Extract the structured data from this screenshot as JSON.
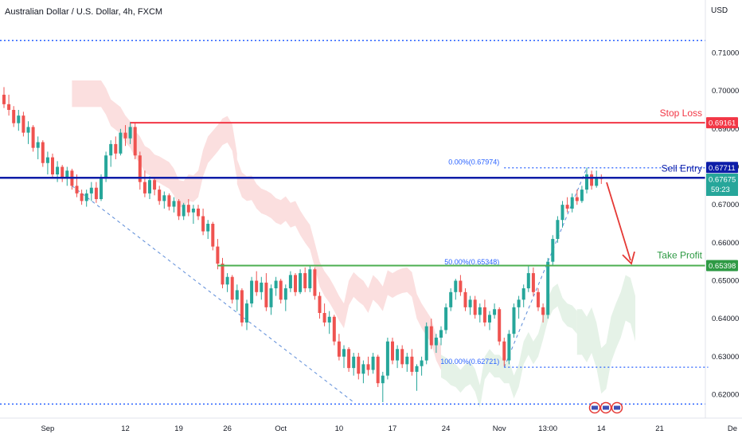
{
  "header": {
    "title": "Australian Dollar / U.S. Dollar, 4h, FXCM",
    "currency": "USD"
  },
  "colors": {
    "up": "#26a69a",
    "down": "#ef5350",
    "stop": "#f23645",
    "entry": "#0d1da8",
    "take": "#4caf50",
    "grid_dotted": "#2962ff",
    "cloud_red": "#fbdcdc",
    "cloud_green": "#e2f1e4",
    "fib_dashed": "#5b8bd8",
    "arrow": "#e53935"
  },
  "chart_data": {
    "type": "candlestick",
    "ylim": [
      0.615,
      0.7185
    ],
    "y_ticks": [
      "0.71000",
      "0.70000",
      "0.69000",
      "0.68000",
      "0.67000",
      "0.66000",
      "0.65000",
      "0.64000",
      "0.63000",
      "0.62000"
    ],
    "x_ticks": [
      {
        "label": "Sep",
        "i": 9
      },
      {
        "label": "12",
        "i": 25
      },
      {
        "label": "19",
        "i": 36
      },
      {
        "label": "26",
        "i": 46
      },
      {
        "label": "Oct",
        "i": 57
      },
      {
        "label": "10",
        "i": 69
      },
      {
        "label": "17",
        "i": 80
      },
      {
        "label": "24",
        "i": 91
      },
      {
        "label": "Nov",
        "i": 102
      },
      {
        "label": "13:00",
        "i": 112
      },
      {
        "label": "14",
        "i": 123
      },
      {
        "label": "21",
        "i": 135
      },
      {
        "label": "De",
        "i": 150
      }
    ],
    "candles": [
      [
        0.699,
        0.701,
        0.6955,
        0.6965
      ],
      [
        0.6965,
        0.699,
        0.6935,
        0.695
      ],
      [
        0.695,
        0.696,
        0.6905,
        0.6915
      ],
      [
        0.6915,
        0.695,
        0.6895,
        0.6935
      ],
      [
        0.6935,
        0.6945,
        0.688,
        0.689
      ],
      [
        0.689,
        0.692,
        0.686,
        0.6905
      ],
      [
        0.6905,
        0.691,
        0.684,
        0.685
      ],
      [
        0.685,
        0.688,
        0.682,
        0.6865
      ],
      [
        0.6865,
        0.687,
        0.68,
        0.681
      ],
      [
        0.681,
        0.684,
        0.678,
        0.6825
      ],
      [
        0.6825,
        0.6835,
        0.677,
        0.678
      ],
      [
        0.678,
        0.6815,
        0.676,
        0.68
      ],
      [
        0.68,
        0.6805,
        0.676,
        0.677
      ],
      [
        0.677,
        0.68,
        0.675,
        0.679
      ],
      [
        0.679,
        0.6795,
        0.674,
        0.675
      ],
      [
        0.675,
        0.678,
        0.672,
        0.673
      ],
      [
        0.673,
        0.674,
        0.67,
        0.671
      ],
      [
        0.671,
        0.674,
        0.6695,
        0.673
      ],
      [
        0.673,
        0.676,
        0.671,
        0.6745
      ],
      [
        0.6745,
        0.676,
        0.6705,
        0.6715
      ],
      [
        0.6715,
        0.678,
        0.671,
        0.677
      ],
      [
        0.677,
        0.684,
        0.676,
        0.683
      ],
      [
        0.683,
        0.687,
        0.68,
        0.686
      ],
      [
        0.686,
        0.688,
        0.682,
        0.6835
      ],
      [
        0.6835,
        0.69,
        0.683,
        0.689
      ],
      [
        0.689,
        0.691,
        0.6855,
        0.6875
      ],
      [
        0.6875,
        0.6918,
        0.686,
        0.6905
      ],
      [
        0.6905,
        0.6915,
        0.682,
        0.683
      ],
      [
        0.683,
        0.684,
        0.674,
        0.676
      ],
      [
        0.676,
        0.679,
        0.672,
        0.673
      ],
      [
        0.673,
        0.6775,
        0.6715,
        0.6765
      ],
      [
        0.6765,
        0.677,
        0.6725,
        0.674
      ],
      [
        0.674,
        0.675,
        0.67,
        0.671
      ],
      [
        0.671,
        0.6735,
        0.669,
        0.6725
      ],
      [
        0.6725,
        0.673,
        0.6685,
        0.6695
      ],
      [
        0.6695,
        0.672,
        0.668,
        0.671
      ],
      [
        0.671,
        0.6715,
        0.666,
        0.667
      ],
      [
        0.667,
        0.6705,
        0.666,
        0.67
      ],
      [
        0.67,
        0.6715,
        0.667,
        0.668
      ],
      [
        0.668,
        0.67,
        0.665,
        0.669
      ],
      [
        0.669,
        0.67,
        0.666,
        0.667
      ],
      [
        0.667,
        0.669,
        0.662,
        0.663
      ],
      [
        0.663,
        0.666,
        0.661,
        0.665
      ],
      [
        0.665,
        0.6655,
        0.658,
        0.659
      ],
      [
        0.659,
        0.661,
        0.653,
        0.6545
      ],
      [
        0.6545,
        0.656,
        0.648,
        0.649
      ],
      [
        0.649,
        0.652,
        0.647,
        0.651
      ],
      [
        0.651,
        0.6515,
        0.644,
        0.645
      ],
      [
        0.645,
        0.649,
        0.642,
        0.6475
      ],
      [
        0.6475,
        0.648,
        0.638,
        0.639
      ],
      [
        0.639,
        0.645,
        0.637,
        0.644
      ],
      [
        0.644,
        0.651,
        0.643,
        0.65
      ],
      [
        0.65,
        0.6525,
        0.646,
        0.647
      ],
      [
        0.647,
        0.651,
        0.645,
        0.6495
      ],
      [
        0.6495,
        0.652,
        0.642,
        0.643
      ],
      [
        0.643,
        0.649,
        0.641,
        0.648
      ],
      [
        0.648,
        0.651,
        0.646,
        0.65
      ],
      [
        0.65,
        0.6505,
        0.644,
        0.645
      ],
      [
        0.645,
        0.649,
        0.642,
        0.648
      ],
      [
        0.648,
        0.6525,
        0.647,
        0.6515
      ],
      [
        0.6515,
        0.652,
        0.646,
        0.647
      ],
      [
        0.647,
        0.653,
        0.6465,
        0.652
      ],
      [
        0.652,
        0.6535,
        0.647,
        0.648
      ],
      [
        0.648,
        0.654,
        0.647,
        0.653
      ],
      [
        0.653,
        0.6535,
        0.645,
        0.646
      ],
      [
        0.646,
        0.647,
        0.64,
        0.6415
      ],
      [
        0.6415,
        0.644,
        0.638,
        0.639
      ],
      [
        0.639,
        0.642,
        0.636,
        0.6405
      ],
      [
        0.6405,
        0.641,
        0.633,
        0.634
      ],
      [
        0.634,
        0.636,
        0.629,
        0.63
      ],
      [
        0.63,
        0.633,
        0.627,
        0.632
      ],
      [
        0.632,
        0.6325,
        0.626,
        0.627
      ],
      [
        0.627,
        0.631,
        0.625,
        0.63
      ],
      [
        0.63,
        0.631,
        0.624,
        0.6255
      ],
      [
        0.6255,
        0.629,
        0.623,
        0.628
      ],
      [
        0.628,
        0.63,
        0.625,
        0.6265
      ],
      [
        0.6265,
        0.631,
        0.6255,
        0.63
      ],
      [
        0.63,
        0.6305,
        0.622,
        0.623
      ],
      [
        0.623,
        0.626,
        0.618,
        0.625
      ],
      [
        0.625,
        0.635,
        0.624,
        0.634
      ],
      [
        0.634,
        0.635,
        0.628,
        0.629
      ],
      [
        0.629,
        0.633,
        0.627,
        0.632
      ],
      [
        0.632,
        0.633,
        0.627,
        0.628
      ],
      [
        0.628,
        0.631,
        0.626,
        0.63
      ],
      [
        0.63,
        0.632,
        0.625,
        0.626
      ],
      [
        0.626,
        0.628,
        0.621,
        0.6275
      ],
      [
        0.6275,
        0.63,
        0.625,
        0.629
      ],
      [
        0.629,
        0.639,
        0.628,
        0.638
      ],
      [
        0.638,
        0.64,
        0.632,
        0.633
      ],
      [
        0.633,
        0.636,
        0.631,
        0.635
      ],
      [
        0.635,
        0.638,
        0.633,
        0.637
      ],
      [
        0.637,
        0.644,
        0.636,
        0.643
      ],
      [
        0.643,
        0.648,
        0.642,
        0.647
      ],
      [
        0.647,
        0.6505,
        0.645,
        0.65
      ],
      [
        0.65,
        0.6515,
        0.646,
        0.647
      ],
      [
        0.647,
        0.648,
        0.642,
        0.643
      ],
      [
        0.643,
        0.646,
        0.641,
        0.645
      ],
      [
        0.645,
        0.646,
        0.64,
        0.641
      ],
      [
        0.641,
        0.644,
        0.639,
        0.643
      ],
      [
        0.643,
        0.645,
        0.638,
        0.639
      ],
      [
        0.639,
        0.642,
        0.637,
        0.641
      ],
      [
        0.641,
        0.644,
        0.64,
        0.6425
      ],
      [
        0.6425,
        0.643,
        0.633,
        0.634
      ],
      [
        0.634,
        0.635,
        0.6275,
        0.629
      ],
      [
        0.629,
        0.637,
        0.628,
        0.636
      ],
      [
        0.636,
        0.644,
        0.635,
        0.643
      ],
      [
        0.643,
        0.646,
        0.64,
        0.645
      ],
      [
        0.645,
        0.649,
        0.643,
        0.648
      ],
      [
        0.648,
        0.654,
        0.647,
        0.652
      ],
      [
        0.652,
        0.6535,
        0.646,
        0.647
      ],
      [
        0.647,
        0.648,
        0.642,
        0.643
      ],
      [
        0.643,
        0.644,
        0.639,
        0.641
      ],
      [
        0.641,
        0.656,
        0.64,
        0.655
      ],
      [
        0.655,
        0.662,
        0.654,
        0.661
      ],
      [
        0.661,
        0.667,
        0.66,
        0.666
      ],
      [
        0.666,
        0.671,
        0.664,
        0.67
      ],
      [
        0.67,
        0.672,
        0.668,
        0.669
      ],
      [
        0.669,
        0.673,
        0.668,
        0.672
      ],
      [
        0.672,
        0.674,
        0.67,
        0.671
      ],
      [
        0.671,
        0.675,
        0.6705,
        0.674
      ],
      [
        0.674,
        0.6798,
        0.673,
        0.678
      ],
      [
        0.678,
        0.679,
        0.674,
        0.675
      ],
      [
        0.675,
        0.679,
        0.6745,
        0.677
      ],
      [
        0.677,
        0.678,
        0.6755,
        0.6768
      ]
    ],
    "levels": {
      "stop_loss": {
        "label": "Stop Loss",
        "price": 0.69161,
        "tag": "0.69161"
      },
      "sell_entry": {
        "label": "Sell Entry",
        "price": 0.67711,
        "tag": "0.67711"
      },
      "take_profit": {
        "label": "Take Profit",
        "price": 0.65398,
        "tag": "0.65398"
      },
      "current": {
        "tag": "0.67675",
        "timer": "59:23"
      }
    },
    "fib": [
      {
        "label": "0.00%(0.67974)",
        "price": 0.67974
      },
      {
        "label": "50.00%(0.65348)",
        "price": 0.65348
      },
      {
        "label": "100.00%(0.62721)",
        "price": 0.62721
      }
    ],
    "dotted_top": 0.7133,
    "dotted_bottom": 0.6175
  }
}
